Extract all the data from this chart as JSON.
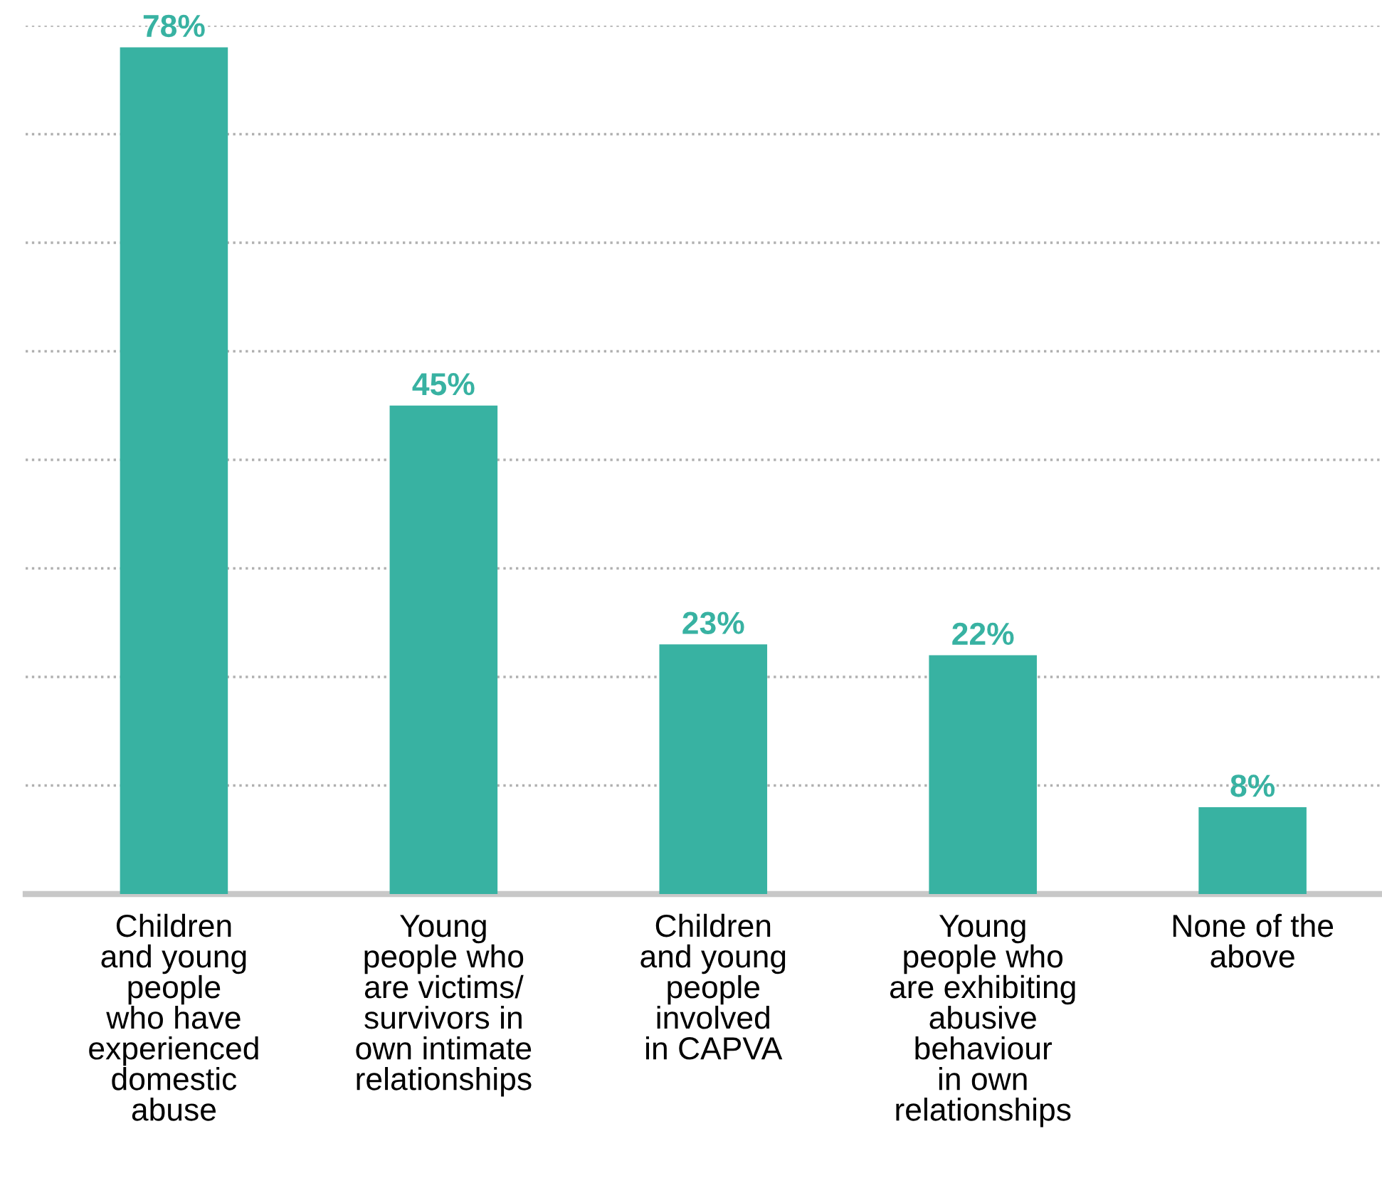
{
  "chart_data": {
    "type": "bar",
    "categories": [
      "Children\nand young\npeople\nwho have\nexperienced\ndomestic\nabuse",
      "Young\npeople who\nare victims/\nsurvivors in\nown intimate\nrelationships",
      "Children\nand young\npeople\ninvolved\nin CAPVA",
      "Young\npeople who\nare exhibiting\nabusive\nbehaviour\nin own\nrelationships",
      "None of the\nabove"
    ],
    "values": [
      78,
      45,
      23,
      22,
      8
    ],
    "value_labels": [
      "78%",
      "45%",
      "23%",
      "22%",
      "8%"
    ],
    "color": "#38b2a2",
    "yticks": [
      {
        "value": 10,
        "label": null
      },
      {
        "value": 20,
        "label": null
      },
      {
        "value": 30,
        "label": null
      },
      {
        "value": 40,
        "label": null
      },
      {
        "value": 50,
        "label": null
      },
      {
        "value": 60,
        "label": null
      },
      {
        "value": 70,
        "label": null
      },
      {
        "value": 80,
        "label": null
      }
    ],
    "grid": "y",
    "line_style": "dotted",
    "tick_labels": "x"
  }
}
